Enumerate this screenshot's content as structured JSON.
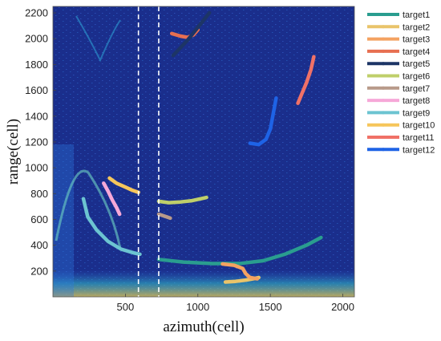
{
  "chart_data": {
    "type": "line",
    "xlabel": "azimuth(cell)",
    "ylabel": "range(cell)",
    "xlim": [
      0,
      2080
    ],
    "ylim": [
      0,
      2250
    ],
    "xticks": [
      500,
      1000,
      1500,
      2000
    ],
    "yticks": [
      200,
      400,
      600,
      800,
      1000,
      1200,
      1400,
      1600,
      1800,
      2000,
      2200
    ],
    "background_color": "#1a2e8c",
    "legend_position": "right-outside",
    "dashed_vlines": [
      590,
      730
    ],
    "series": [
      {
        "name": "target1",
        "color": "#2a9d8f",
        "x": [
          730,
          900,
          1100,
          1300,
          1450,
          1600,
          1750,
          1850
        ],
        "y": [
          290,
          270,
          258,
          260,
          280,
          330,
          400,
          460
        ]
      },
      {
        "name": "target2",
        "color": "#e9c46a",
        "x": [
          1190,
          1260,
          1330,
          1380,
          1420
        ],
        "y": [
          115,
          120,
          130,
          140,
          150
        ]
      },
      {
        "name": "target3",
        "color": "#f4a261",
        "x": [
          1170,
          1250,
          1310,
          1330,
          1360,
          1410
        ],
        "y": [
          255,
          245,
          220,
          180,
          150,
          140
        ]
      },
      {
        "name": "target4",
        "color": "#e76f51",
        "x": [
          820,
          880,
          930,
          970,
          1000
        ],
        "y": [
          2040,
          2020,
          2010,
          2030,
          2070
        ]
      },
      {
        "name": "target5",
        "color": "#1d3566",
        "x": [
          830,
          880,
          930,
          980,
          1030,
          1080
        ],
        "y": [
          1870,
          1930,
          1990,
          2060,
          2130,
          2200
        ]
      },
      {
        "name": "target6",
        "color": "#bfcf6a",
        "x": [
          730,
          800,
          880,
          960,
          1060
        ],
        "y": [
          740,
          730,
          735,
          745,
          770
        ]
      },
      {
        "name": "target7",
        "color": "#b89a8a",
        "x": [
          730,
          770,
          810
        ],
        "y": [
          640,
          625,
          610
        ]
      },
      {
        "name": "target8",
        "color": "#f6a8d8",
        "x": [
          350,
          380,
          410,
          440,
          460
        ],
        "y": [
          880,
          820,
          750,
          690,
          640
        ]
      },
      {
        "name": "target9",
        "color": "#6cc4d1",
        "x": [
          210,
          240,
          300,
          380,
          470,
          560,
          600
        ],
        "y": [
          760,
          620,
          520,
          430,
          370,
          340,
          330
        ]
      },
      {
        "name": "target10",
        "color": "#f6c65b",
        "x": [
          390,
          440,
          500,
          550,
          590
        ],
        "y": [
          920,
          880,
          850,
          825,
          810
        ]
      },
      {
        "name": "target11",
        "color": "#f07167",
        "x": [
          1690,
          1720,
          1750,
          1780,
          1800
        ],
        "y": [
          1500,
          1580,
          1660,
          1760,
          1860
        ]
      },
      {
        "name": "target12",
        "color": "#1e63e6",
        "x": [
          1360,
          1420,
          1470,
          1500,
          1520,
          1540
        ],
        "y": [
          1190,
          1180,
          1220,
          1300,
          1420,
          1540
        ]
      }
    ]
  }
}
